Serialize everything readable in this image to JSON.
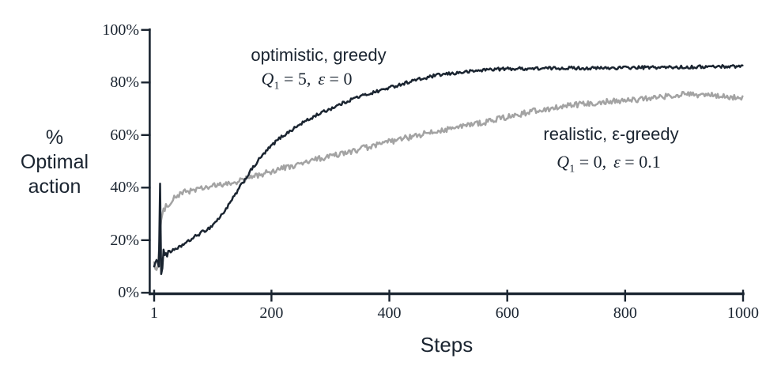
{
  "labels": {
    "y_title_lines": [
      "%",
      "Optimal",
      "action"
    ],
    "x_title": "Steps"
  },
  "annotations": {
    "optimistic": {
      "title": "optimistic, greedy",
      "q": "Q",
      "sub": "1",
      "mid": " = 5,",
      "eps": "ε",
      "tail": " = 0"
    },
    "realistic": {
      "title": "realistic, ε-greedy",
      "q": "Q",
      "sub": "1",
      "mid": " = 0,",
      "eps": "ε",
      "tail": " = 0.1"
    }
  },
  "colors": {
    "ink": "#1a2430",
    "optimistic_line": "#1a2430",
    "realistic_line": "#a3a3a3",
    "background": "#ffffff"
  },
  "chart_data": {
    "type": "line",
    "title": "",
    "xlabel": "Steps",
    "ylabel": "% Optimal action",
    "grid": false,
    "legend_position": "inline-annotations",
    "x_axis": {
      "min": 1,
      "max": 1000,
      "ticks": [
        {
          "step": 1,
          "label": "1"
        },
        {
          "step": 200,
          "label": "200"
        },
        {
          "step": 400,
          "label": "400"
        },
        {
          "step": 600,
          "label": "600"
        },
        {
          "step": 800,
          "label": "800"
        },
        {
          "step": 1000,
          "label": "1000"
        }
      ]
    },
    "y_axis": {
      "min_pct": 0,
      "max_pct": 100,
      "ticks": [
        {
          "pct": 0,
          "label": "0%"
        },
        {
          "pct": 20,
          "label": "20%"
        },
        {
          "pct": 40,
          "label": "40%"
        },
        {
          "pct": 60,
          "label": "60%"
        },
        {
          "pct": 80,
          "label": "80%"
        },
        {
          "pct": 100,
          "label": "100%"
        }
      ]
    },
    "series": [
      {
        "name": "optimistic, greedy",
        "params": "Q1 = 5, ε = 0",
        "q1": 5,
        "epsilon": 0,
        "color": "#1a2430",
        "noise_pct": 0.6,
        "points_step_pct": [
          [
            1,
            10.5
          ],
          [
            4,
            11.5
          ],
          [
            6,
            12.5
          ],
          [
            8,
            10
          ],
          [
            10,
            11
          ],
          [
            11,
            42
          ],
          [
            13,
            7.5
          ],
          [
            15,
            9
          ],
          [
            16,
            19
          ],
          [
            18,
            14
          ],
          [
            20,
            15.5
          ],
          [
            23,
            14
          ],
          [
            26,
            16
          ],
          [
            30,
            15.5
          ],
          [
            34,
            17
          ],
          [
            38,
            16
          ],
          [
            42,
            17
          ],
          [
            46,
            17.5
          ],
          [
            50,
            18.5
          ],
          [
            56,
            19
          ],
          [
            62,
            20
          ],
          [
            68,
            21
          ],
          [
            75,
            22
          ],
          [
            82,
            23
          ],
          [
            90,
            24
          ],
          [
            97,
            25
          ],
          [
            105,
            27
          ],
          [
            112,
            28.5
          ],
          [
            120,
            31
          ],
          [
            128,
            33.5
          ],
          [
            135,
            36
          ],
          [
            142,
            38.5
          ],
          [
            150,
            41.5
          ],
          [
            158,
            44
          ],
          [
            165,
            46.5
          ],
          [
            172,
            48.5
          ],
          [
            180,
            51
          ],
          [
            188,
            53
          ],
          [
            196,
            55
          ],
          [
            205,
            57
          ],
          [
            215,
            59
          ],
          [
            225,
            60.5
          ],
          [
            235,
            62
          ],
          [
            245,
            63.5
          ],
          [
            255,
            65
          ],
          [
            265,
            66
          ],
          [
            275,
            67.5
          ],
          [
            285,
            68.5
          ],
          [
            295,
            69.5
          ],
          [
            310,
            71
          ],
          [
            325,
            72.5
          ],
          [
            340,
            74
          ],
          [
            355,
            75
          ],
          [
            370,
            76
          ],
          [
            385,
            77
          ],
          [
            400,
            78
          ],
          [
            415,
            79
          ],
          [
            430,
            80
          ],
          [
            445,
            81
          ],
          [
            460,
            81.5
          ],
          [
            475,
            82.5
          ],
          [
            490,
            83
          ],
          [
            510,
            83.5
          ],
          [
            530,
            84
          ],
          [
            550,
            84.5
          ],
          [
            570,
            85
          ],
          [
            600,
            85.2
          ],
          [
            650,
            85.3
          ],
          [
            700,
            85.5
          ],
          [
            750,
            85.4
          ],
          [
            800,
            85.6
          ],
          [
            850,
            85.7
          ],
          [
            900,
            85.8
          ],
          [
            940,
            86
          ],
          [
            1000,
            86.2
          ]
        ]
      },
      {
        "name": "realistic, ε-greedy",
        "params": "Q1 = 0, ε = 0.1",
        "q1": 0,
        "epsilon": 0.1,
        "color": "#a3a3a3",
        "noise_pct": 1.1,
        "points_step_pct": [
          [
            1,
            12
          ],
          [
            3,
            10
          ],
          [
            5,
            8.5
          ],
          [
            7,
            10
          ],
          [
            9,
            16
          ],
          [
            11,
            23
          ],
          [
            13,
            27
          ],
          [
            15,
            29.5
          ],
          [
            17,
            31
          ],
          [
            20,
            32.5
          ],
          [
            24,
            33.5
          ],
          [
            28,
            34.5
          ],
          [
            33,
            35.5
          ],
          [
            38,
            36.5
          ],
          [
            45,
            37.5
          ],
          [
            55,
            38.5
          ],
          [
            65,
            39
          ],
          [
            80,
            39.5
          ],
          [
            100,
            40.5
          ],
          [
            115,
            41
          ],
          [
            130,
            41.5
          ],
          [
            145,
            42.5
          ],
          [
            160,
            43.5
          ],
          [
            175,
            44.5
          ],
          [
            190,
            45.5
          ],
          [
            205,
            46.5
          ],
          [
            220,
            47.5
          ],
          [
            235,
            48
          ],
          [
            250,
            49
          ],
          [
            265,
            50
          ],
          [
            280,
            51
          ],
          [
            295,
            51.5
          ],
          [
            310,
            52.5
          ],
          [
            325,
            53
          ],
          [
            340,
            54
          ],
          [
            355,
            55
          ],
          [
            370,
            55.5
          ],
          [
            385,
            56.5
          ],
          [
            400,
            57.5
          ],
          [
            415,
            58
          ],
          [
            430,
            59
          ],
          [
            445,
            59.5
          ],
          [
            460,
            60.5
          ],
          [
            475,
            61
          ],
          [
            490,
            62
          ],
          [
            505,
            62.5
          ],
          [
            520,
            63
          ],
          [
            535,
            64
          ],
          [
            550,
            64.5
          ],
          [
            565,
            65
          ],
          [
            580,
            66
          ],
          [
            595,
            66.5
          ],
          [
            610,
            67.5
          ],
          [
            625,
            68
          ],
          [
            640,
            69
          ],
          [
            655,
            69.5
          ],
          [
            670,
            70
          ],
          [
            685,
            70.5
          ],
          [
            700,
            71
          ],
          [
            720,
            71.5
          ],
          [
            740,
            72
          ],
          [
            760,
            72.5
          ],
          [
            780,
            73
          ],
          [
            800,
            73
          ],
          [
            820,
            73.5
          ],
          [
            840,
            74
          ],
          [
            860,
            74.5
          ],
          [
            880,
            75
          ],
          [
            900,
            75.5
          ],
          [
            920,
            75
          ],
          [
            940,
            75.5
          ],
          [
            960,
            74.5
          ],
          [
            980,
            74.5
          ],
          [
            1000,
            74
          ]
        ]
      }
    ]
  }
}
